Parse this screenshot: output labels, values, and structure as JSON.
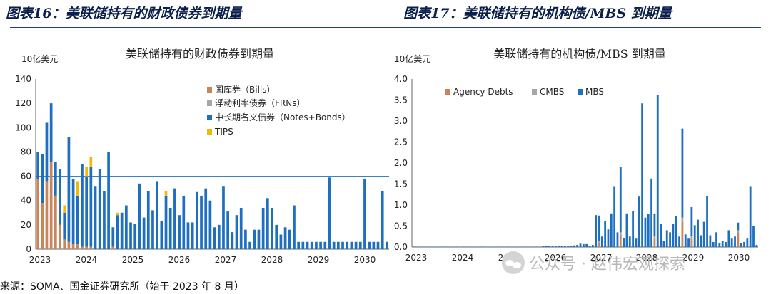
{
  "figures": [
    {
      "number": "图表16：美联储持有的财政债券到期量"
    },
    {
      "number": "图表17：美联储持有的机构债/MBS 到期量"
    }
  ],
  "source": "来源：SOMA、国金证券研究所（始于 2023 年 8 月）",
  "watermark": "公众号 · 赵伟宏观探索",
  "chart_data": [
    {
      "type": "bar",
      "stacked": true,
      "title": "美联储持有的财政债券到期量",
      "ylabel": "10亿美元",
      "ylim": [
        0,
        140
      ],
      "yticks": [
        0,
        20,
        40,
        60,
        80,
        100,
        120,
        140
      ],
      "x_tick_labels": [
        "2023",
        "2024",
        "2025",
        "2026",
        "2027",
        "2028",
        "2029",
        "2030"
      ],
      "reference_line": 60,
      "legend": "top-right",
      "series": [
        {
          "name": "国库券（Bills）",
          "color": "#c8845a",
          "values": [
            58,
            38,
            56,
            72,
            44,
            20,
            8,
            6,
            4,
            4,
            2,
            2,
            2,
            0,
            0,
            0,
            0,
            2,
            0,
            0,
            0,
            0,
            0,
            0,
            0,
            0,
            0,
            0,
            0,
            0,
            0,
            0,
            0,
            0,
            0,
            0,
            0,
            0,
            0,
            0,
            0,
            0,
            0,
            0,
            0,
            0,
            0,
            0,
            0,
            0,
            0,
            0,
            0,
            0,
            0,
            0,
            0,
            0,
            0,
            0,
            0,
            0,
            0,
            0,
            0,
            0,
            0,
            0,
            0,
            0,
            0,
            0,
            0,
            0,
            0,
            0,
            0,
            0,
            0,
            0
          ]
        },
        {
          "name": "浮动利率债券（FRNs）",
          "color": "#a6a6a6",
          "values": [
            0,
            0,
            0,
            0,
            0,
            0,
            0,
            0,
            0,
            0,
            0,
            0,
            0,
            0,
            0,
            0,
            0,
            0,
            0,
            0,
            0,
            0,
            0,
            0,
            0,
            0,
            0,
            0,
            0,
            0,
            0,
            0,
            0,
            0,
            0,
            0,
            0,
            0,
            0,
            0,
            0,
            0,
            0,
            0,
            0,
            0,
            0,
            0,
            0,
            0,
            0,
            0,
            0,
            0,
            0,
            0,
            0,
            0,
            0,
            0,
            0,
            0,
            0,
            0,
            0,
            0,
            0,
            0,
            0,
            0,
            0,
            0,
            0,
            0,
            0,
            0,
            0,
            0,
            0,
            0
          ]
        },
        {
          "name": "中长期名义债券（Notes+Bonds）",
          "color": "#1f6fc1",
          "values": [
            22,
            40,
            48,
            48,
            28,
            46,
            22,
            86,
            54,
            40,
            68,
            58,
            66,
            52,
            66,
            48,
            80,
            16,
            28,
            30,
            36,
            22,
            21,
            54,
            26,
            48,
            32,
            56,
            23,
            44,
            34,
            50,
            28,
            44,
            22,
            22,
            47,
            44,
            50,
            40,
            18,
            20,
            52,
            31,
            14,
            28,
            34,
            16,
            6,
            16,
            16,
            34,
            42,
            34,
            20,
            12,
            18,
            16,
            36,
            6,
            6,
            6,
            6,
            6,
            6,
            6,
            59,
            6,
            6,
            6,
            6,
            6,
            6,
            6,
            58,
            6,
            6,
            6,
            48,
            6
          ]
        },
        {
          "name": "TIPS",
          "color": "#f5b800",
          "values": [
            0,
            0,
            0,
            0,
            0,
            0,
            6,
            0,
            0,
            12,
            0,
            8,
            8,
            0,
            0,
            0,
            0,
            0,
            2,
            0,
            0,
            0,
            0,
            0,
            0,
            0,
            0,
            0,
            0,
            4,
            0,
            0,
            0,
            0,
            0,
            0,
            0,
            0,
            0,
            0,
            0,
            0,
            0,
            0,
            0,
            0,
            0,
            0,
            0,
            0,
            0,
            0,
            0,
            0,
            0,
            0,
            0,
            0,
            0,
            0,
            0,
            0,
            0,
            0,
            0,
            0,
            0,
            0,
            0,
            0,
            0,
            0,
            0,
            0,
            0,
            0,
            0,
            0,
            0,
            0
          ]
        }
      ]
    },
    {
      "type": "bar",
      "stacked": true,
      "title": "美联储持有的机构债/MBS 到期量",
      "ylabel": "10亿美元",
      "ylim": [
        0,
        4.0
      ],
      "yticks": [
        0.0,
        0.5,
        1.0,
        1.5,
        2.0,
        2.5,
        3.0,
        3.5,
        4.0
      ],
      "x_tick_labels": [
        "2023",
        "2024",
        "2025",
        "2026",
        "2027",
        "2028",
        "2029",
        "2030"
      ],
      "legend": "top-left",
      "series": [
        {
          "name": "Agency Debts",
          "color": "#c8845a",
          "values": [
            0,
            0,
            0,
            0,
            0,
            0,
            0,
            0,
            0,
            0,
            0,
            0,
            0,
            0,
            0,
            0,
            0,
            0,
            0,
            0,
            0,
            0,
            0,
            0,
            0,
            0,
            0,
            0,
            0,
            0,
            0,
            0,
            0,
            0,
            0,
            0,
            0,
            0,
            0,
            0,
            0,
            0,
            0,
            0,
            0,
            0,
            0,
            0,
            0,
            0,
            0,
            0,
            0,
            0,
            0,
            0,
            0,
            0,
            0,
            0,
            0.1,
            0,
            0,
            0,
            0,
            0,
            0,
            0.3,
            0,
            0,
            0,
            0,
            0,
            0,
            0,
            0,
            0,
            0,
            0.2,
            0,
            0,
            0,
            0,
            0,
            0,
            0,
            0,
            0.6,
            0,
            0,
            0.2,
            0,
            0,
            0,
            0,
            0,
            0,
            0,
            0,
            0,
            0,
            0,
            0,
            0,
            0,
            0.35,
            0,
            0,
            0,
            0,
            0,
            0
          ]
        },
        {
          "name": "CMBS",
          "color": "#a6a6a6",
          "values": [
            0,
            0,
            0,
            0,
            0,
            0,
            0,
            0,
            0,
            0,
            0,
            0,
            0,
            0,
            0,
            0,
            0,
            0,
            0,
            0,
            0,
            0,
            0,
            0,
            0,
            0,
            0,
            0,
            0,
            0,
            0,
            0,
            0,
            0,
            0,
            0,
            0,
            0,
            0,
            0,
            0,
            0,
            0,
            0,
            0,
            0,
            0,
            0,
            0,
            0,
            0,
            0,
            0,
            0,
            0,
            0,
            0,
            0,
            0,
            0,
            0.05,
            0,
            0,
            0,
            0,
            0,
            0,
            0.05,
            0,
            0,
            0,
            0,
            0,
            0,
            0,
            0,
            0,
            0,
            0.05,
            0,
            0,
            0,
            0,
            0,
            0,
            0,
            0,
            0.1,
            0,
            0,
            0.05,
            0,
            0,
            0,
            0,
            0,
            0,
            0,
            0,
            0,
            0,
            0,
            0,
            0,
            0,
            0.05,
            0,
            0,
            0,
            0,
            0,
            0
          ]
        },
        {
          "name": "MBS",
          "color": "#1f6fc1",
          "values": [
            0.01,
            0.01,
            0.01,
            0.01,
            0.01,
            0.01,
            0.01,
            0.01,
            0.01,
            0.01,
            0.01,
            0.01,
            0.01,
            0.01,
            0.01,
            0.01,
            0.01,
            0.01,
            0.01,
            0.01,
            0.01,
            0.01,
            0.01,
            0.01,
            0.01,
            0.01,
            0.01,
            0.01,
            0.01,
            0.01,
            0.01,
            0.01,
            0.01,
            0.01,
            0.01,
            0.01,
            0.01,
            0.01,
            0.01,
            0.01,
            0.01,
            0.01,
            0.02,
            0.02,
            0.02,
            0.02,
            0.02,
            0.02,
            0.03,
            0.03,
            0.03,
            0.03,
            0.04,
            0.05,
            0.08,
            0.07,
            0.07,
            0.03,
            0.05,
            0.76,
            0.6,
            0.25,
            0.62,
            0.42,
            0.8,
            1.45,
            0.35,
            1.55,
            0.22,
            0.8,
            0.25,
            0.86,
            0.2,
            1.2,
            3.42,
            0.7,
            0.78,
            1.63,
            0.55,
            3.62,
            0.55,
            0.15,
            0.4,
            0.35,
            0.55,
            0.73,
            0.25,
            2.12,
            0.3,
            0.2,
            0.7,
            0.52,
            0.65,
            0.28,
            0.6,
            1.22,
            0.28,
            0.12,
            0.35,
            0.1,
            0.15,
            0.12,
            0.4,
            0.2,
            0.25,
            0.18,
            0.1,
            0.12,
            0.2,
            1.45,
            0.5,
            0.05,
            0.15,
            0.45
          ]
        }
      ]
    }
  ]
}
